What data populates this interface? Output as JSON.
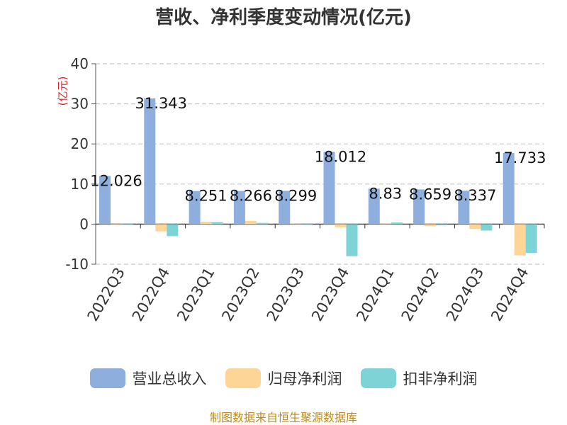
{
  "chart_data": {
    "type": "bar",
    "title": "营收、净利季度变动情况(亿元)",
    "unit_label": "(亿元)",
    "categories": [
      "2022Q3",
      "2022Q4",
      "2023Q1",
      "2023Q2",
      "2023Q3",
      "2023Q4",
      "2024Q1",
      "2024Q2",
      "2024Q3",
      "2024Q4"
    ],
    "series": [
      {
        "name": "营业总收入",
        "color": "#8eaedd",
        "values": [
          12.026,
          31.343,
          8.251,
          8.266,
          8.299,
          18.012,
          8.83,
          8.659,
          8.337,
          17.733
        ]
      },
      {
        "name": "归母净利润",
        "color": "#fdd597",
        "values": [
          0.05,
          -1.8,
          0.6,
          0.8,
          0.1,
          -0.8,
          0.1,
          -0.5,
          -1.2,
          -7.8
        ]
      },
      {
        "name": "扣非净利润",
        "color": "#7dd3d6",
        "values": [
          0.05,
          -3.0,
          0.5,
          0.3,
          0.05,
          -8.0,
          0.4,
          -0.3,
          -1.6,
          -7.2
        ]
      }
    ],
    "data_labels": [
      "12.026",
      "31.343",
      "8.251",
      "8.266",
      "8.299",
      "18.012",
      "8.83",
      "8.659",
      "8.337",
      "17.733"
    ],
    "ylim": [
      -10,
      40
    ],
    "yticks": [
      -10,
      0,
      10,
      20,
      30,
      40
    ],
    "grid": true,
    "legend_position": "bottom"
  },
  "source": "制图数据来自恒生聚源数据库"
}
